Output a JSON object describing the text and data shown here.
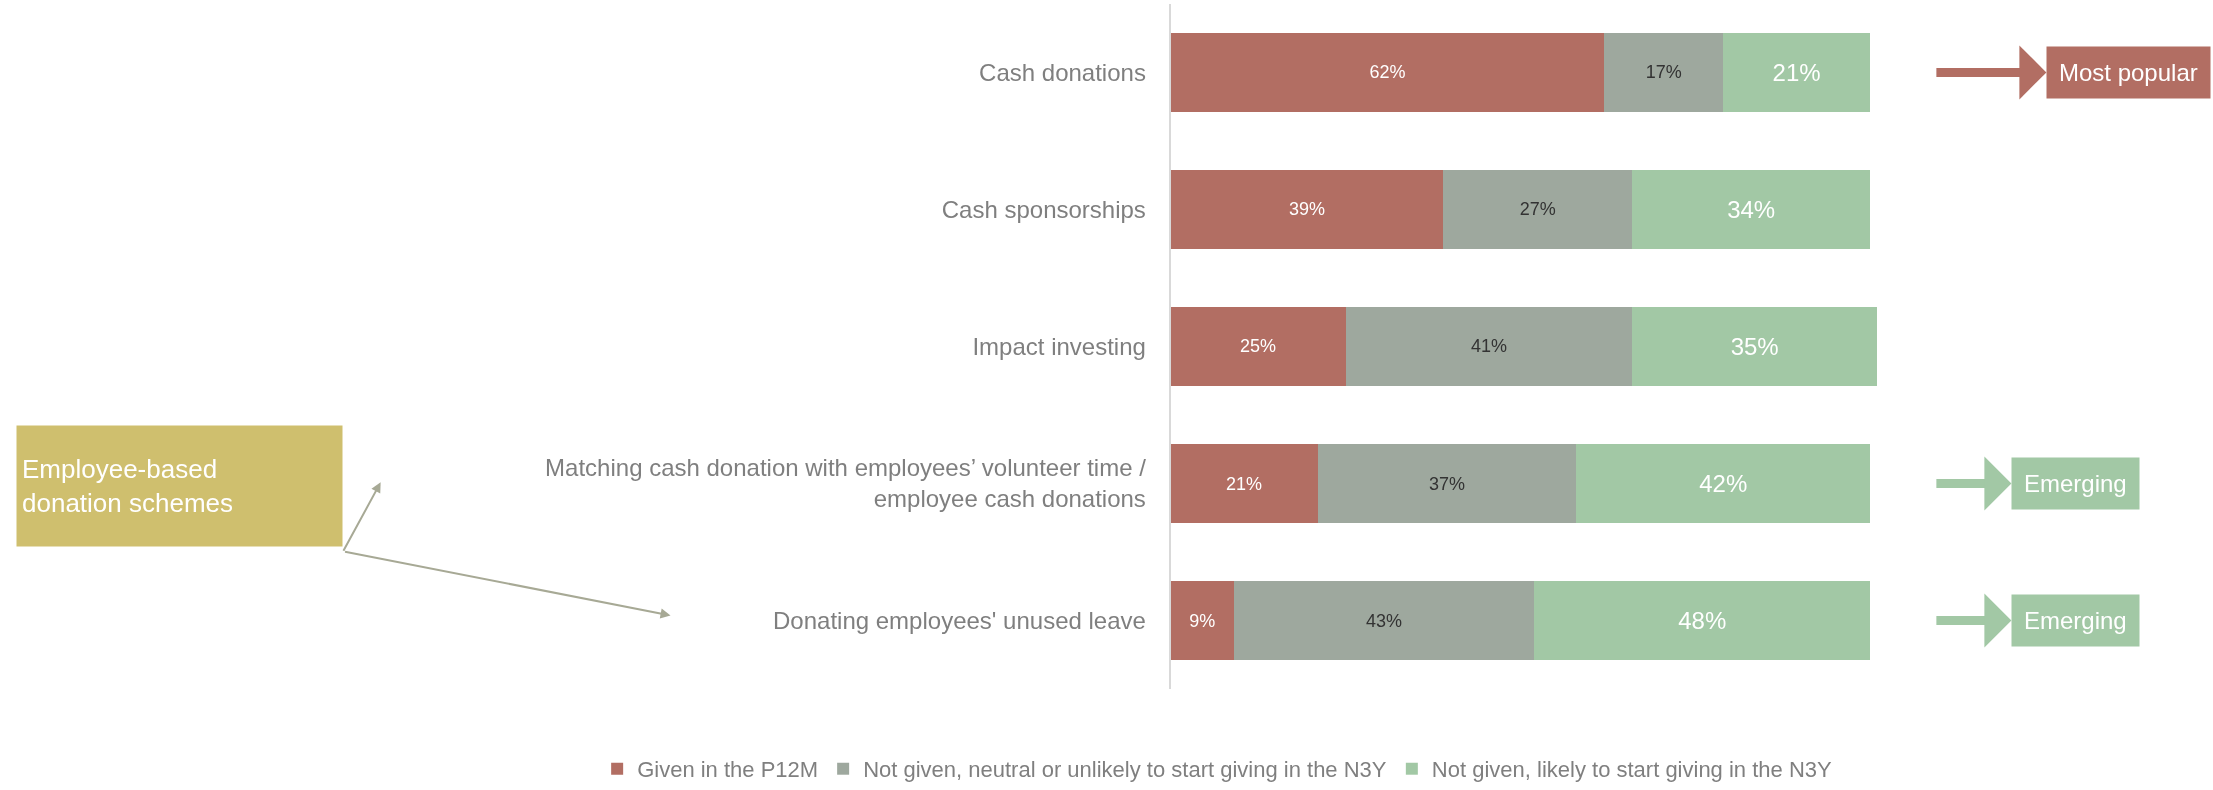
{
  "chart_data": {
    "type": "bar",
    "orientation": "horizontal",
    "stacked": true,
    "categories": [
      "Cash donations",
      "Cash sponsorships",
      "Impact investing",
      "Matching cash donation with employees’ volunteer time / employee cash donations",
      "Donating employees' unused leave"
    ],
    "series": [
      {
        "name": "Given in the P12M",
        "color": "#b26e63",
        "values": [
          62,
          39,
          25,
          21,
          9
        ],
        "value_labels": [
          "62%",
          "39%",
          "25%",
          "21%",
          "9%"
        ]
      },
      {
        "name": "Not given, neutral or unlikely to start giving in the N3Y",
        "color": "#9ea89e",
        "values": [
          17,
          27,
          41,
          37,
          43
        ],
        "value_labels": [
          "17%",
          "27%",
          "41%",
          "37%",
          "43%"
        ]
      },
      {
        "name": "Not given, likely to start giving in the N3Y",
        "color": "#a2c8a5",
        "values": [
          21,
          34,
          35,
          42,
          48
        ],
        "value_labels": [
          "21%",
          "34%",
          "35%",
          "42%",
          "48%"
        ]
      }
    ],
    "legend": "bottom",
    "annotations": [
      "Most popular",
      "Emerging",
      "Emerging",
      "Employee-based donation schemes"
    ]
  }
}
